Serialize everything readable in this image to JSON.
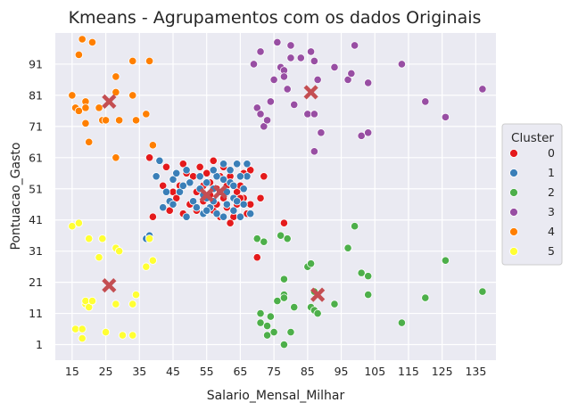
{
  "chart_data": {
    "type": "scatter",
    "title": "Kmeans - Agrupamentos com os dados Originais",
    "xlabel": "Salario_Mensal_Milhar",
    "ylabel": "Pontuacao_Gasto",
    "xlim": [
      10,
      141
    ],
    "ylim": [
      -4,
      101
    ],
    "xticks": [
      15,
      25,
      35,
      45,
      55,
      65,
      75,
      85,
      95,
      105,
      115,
      125,
      135
    ],
    "yticks": [
      1,
      11,
      21,
      31,
      41,
      51,
      61,
      71,
      81,
      91
    ],
    "grid": true,
    "background": "#eaeaf2",
    "legend": {
      "title": "Cluster",
      "placement": "right"
    },
    "series": [
      {
        "name": "0",
        "color": "#e41a1c",
        "points": [
          [
            38,
            61
          ],
          [
            39,
            42
          ],
          [
            40,
            55
          ],
          [
            42,
            52
          ],
          [
            43,
            58
          ],
          [
            44,
            44
          ],
          [
            45,
            50
          ],
          [
            46,
            48
          ],
          [
            47,
            52
          ],
          [
            48,
            59
          ],
          [
            48,
            43
          ],
          [
            49,
            56
          ],
          [
            50,
            46
          ],
          [
            51,
            55
          ],
          [
            52,
            44
          ],
          [
            52,
            50
          ],
          [
            53,
            58
          ],
          [
            54,
            52
          ],
          [
            54,
            47
          ],
          [
            55,
            56
          ],
          [
            56,
            49
          ],
          [
            56,
            53
          ],
          [
            57,
            44
          ],
          [
            57,
            60
          ],
          [
            58,
            51
          ],
          [
            58,
            46
          ],
          [
            59,
            55
          ],
          [
            59,
            42
          ],
          [
            60,
            48
          ],
          [
            61,
            52
          ],
          [
            61,
            45
          ],
          [
            62,
            55
          ],
          [
            63,
            42
          ],
          [
            64,
            50
          ],
          [
            64,
            46
          ],
          [
            65,
            52
          ],
          [
            66,
            48
          ],
          [
            66,
            56
          ],
          [
            67,
            43
          ],
          [
            68,
            57
          ],
          [
            70,
            29
          ],
          [
            71,
            48
          ],
          [
            72,
            55
          ],
          [
            78,
            40
          ],
          [
            68,
            46
          ],
          [
            60,
            58
          ],
          [
            62,
            40
          ],
          [
            65,
            48
          ]
        ]
      },
      {
        "name": "1",
        "color": "#3a7fb8",
        "points": [
          [
            37,
            35
          ],
          [
            38,
            36
          ],
          [
            40,
            55
          ],
          [
            41,
            60
          ],
          [
            42,
            45
          ],
          [
            43,
            50
          ],
          [
            44,
            47
          ],
          [
            45,
            54
          ],
          [
            45,
            46
          ],
          [
            46,
            56
          ],
          [
            47,
            50
          ],
          [
            48,
            52
          ],
          [
            49,
            42
          ],
          [
            49,
            57
          ],
          [
            50,
            53
          ],
          [
            51,
            47
          ],
          [
            52,
            45
          ],
          [
            53,
            51
          ],
          [
            53,
            55
          ],
          [
            54,
            43
          ],
          [
            54,
            49
          ],
          [
            55,
            53
          ],
          [
            55,
            48
          ],
          [
            56,
            45
          ],
          [
            57,
            51
          ],
          [
            57,
            47
          ],
          [
            58,
            55
          ],
          [
            58,
            43
          ],
          [
            59,
            50
          ],
          [
            60,
            54
          ],
          [
            60,
            42
          ],
          [
            61,
            46
          ],
          [
            61,
            50
          ],
          [
            62,
            57
          ],
          [
            62,
            53
          ],
          [
            63,
            44
          ],
          [
            63,
            48
          ],
          [
            64,
            59
          ],
          [
            65,
            42
          ],
          [
            66,
            51
          ],
          [
            66,
            46
          ],
          [
            67,
            55
          ],
          [
            67,
            59
          ],
          [
            68,
            43
          ],
          [
            60,
            59
          ],
          [
            55,
            44
          ],
          [
            63,
            52
          ],
          [
            65,
            55
          ],
          [
            57,
            57
          ],
          [
            64,
            47
          ]
        ]
      },
      {
        "name": "2",
        "color": "#4daf4a",
        "points": [
          [
            70,
            35
          ],
          [
            71,
            11
          ],
          [
            71,
            8
          ],
          [
            72,
            34
          ],
          [
            73,
            7
          ],
          [
            73,
            4
          ],
          [
            74,
            10
          ],
          [
            75,
            5
          ],
          [
            76,
            15
          ],
          [
            77,
            36
          ],
          [
            78,
            22
          ],
          [
            78,
            17
          ],
          [
            78,
            16
          ],
          [
            78,
            1
          ],
          [
            79,
            35
          ],
          [
            80,
            5
          ],
          [
            81,
            13
          ],
          [
            85,
            26
          ],
          [
            86,
            27
          ],
          [
            86,
            13
          ],
          [
            87,
            12
          ],
          [
            87,
            18
          ],
          [
            88,
            11
          ],
          [
            93,
            14
          ],
          [
            97,
            32
          ],
          [
            99,
            39
          ],
          [
            101,
            24
          ],
          [
            103,
            17
          ],
          [
            103,
            23
          ],
          [
            113,
            8
          ],
          [
            120,
            16
          ],
          [
            126,
            28
          ],
          [
            137,
            18
          ]
        ]
      },
      {
        "name": "3",
        "color": "#984ea3",
        "points": [
          [
            69,
            91
          ],
          [
            70,
            77
          ],
          [
            71,
            75
          ],
          [
            71,
            95
          ],
          [
            72,
            71
          ],
          [
            73,
            73
          ],
          [
            74,
            79
          ],
          [
            75,
            86
          ],
          [
            76,
            98
          ],
          [
            77,
            90
          ],
          [
            78,
            88
          ],
          [
            78,
            89
          ],
          [
            78,
            87
          ],
          [
            79,
            83
          ],
          [
            80,
            93
          ],
          [
            80,
            97
          ],
          [
            81,
            78
          ],
          [
            83,
            93
          ],
          [
            85,
            75
          ],
          [
            86,
            95
          ],
          [
            87,
            75
          ],
          [
            87,
            92
          ],
          [
            87,
            63
          ],
          [
            88,
            86
          ],
          [
            89,
            69
          ],
          [
            93,
            90
          ],
          [
            97,
            86
          ],
          [
            98,
            88
          ],
          [
            99,
            97
          ],
          [
            101,
            68
          ],
          [
            103,
            69
          ],
          [
            103,
            85
          ],
          [
            113,
            91
          ],
          [
            120,
            79
          ],
          [
            126,
            74
          ],
          [
            137,
            83
          ]
        ]
      },
      {
        "name": "4",
        "color": "#ff7f00",
        "points": [
          [
            15,
            81
          ],
          [
            16,
            77
          ],
          [
            17,
            76
          ],
          [
            17,
            94
          ],
          [
            18,
            99
          ],
          [
            19,
            72
          ],
          [
            19,
            79
          ],
          [
            19,
            77
          ],
          [
            20,
            66
          ],
          [
            21,
            98
          ],
          [
            23,
            77
          ],
          [
            24,
            73
          ],
          [
            25,
            73
          ],
          [
            28,
            82
          ],
          [
            28,
            61
          ],
          [
            28,
            87
          ],
          [
            29,
            73
          ],
          [
            33,
            92
          ],
          [
            33,
            81
          ],
          [
            34,
            73
          ],
          [
            37,
            75
          ],
          [
            38,
            92
          ],
          [
            39,
            65
          ]
        ]
      },
      {
        "name": "5",
        "color": "#ffff33",
        "points": [
          [
            15,
            39
          ],
          [
            16,
            6
          ],
          [
            17,
            40
          ],
          [
            18,
            6
          ],
          [
            18,
            3
          ],
          [
            19,
            14
          ],
          [
            19,
            15
          ],
          [
            20,
            13
          ],
          [
            20,
            35
          ],
          [
            21,
            15
          ],
          [
            23,
            29
          ],
          [
            24,
            35
          ],
          [
            25,
            5
          ],
          [
            28,
            32
          ],
          [
            28,
            14
          ],
          [
            29,
            31
          ],
          [
            30,
            4
          ],
          [
            33,
            4
          ],
          [
            33,
            14
          ],
          [
            34,
            17
          ],
          [
            37,
            26
          ],
          [
            38,
            35
          ],
          [
            39,
            28
          ]
        ]
      }
    ],
    "centroids": {
      "color": "#c44e52",
      "points": [
        [
          26,
          79
        ],
        [
          55,
          49
        ],
        [
          59,
          50
        ],
        [
          86,
          82
        ],
        [
          88,
          17
        ],
        [
          26,
          20
        ]
      ]
    }
  }
}
